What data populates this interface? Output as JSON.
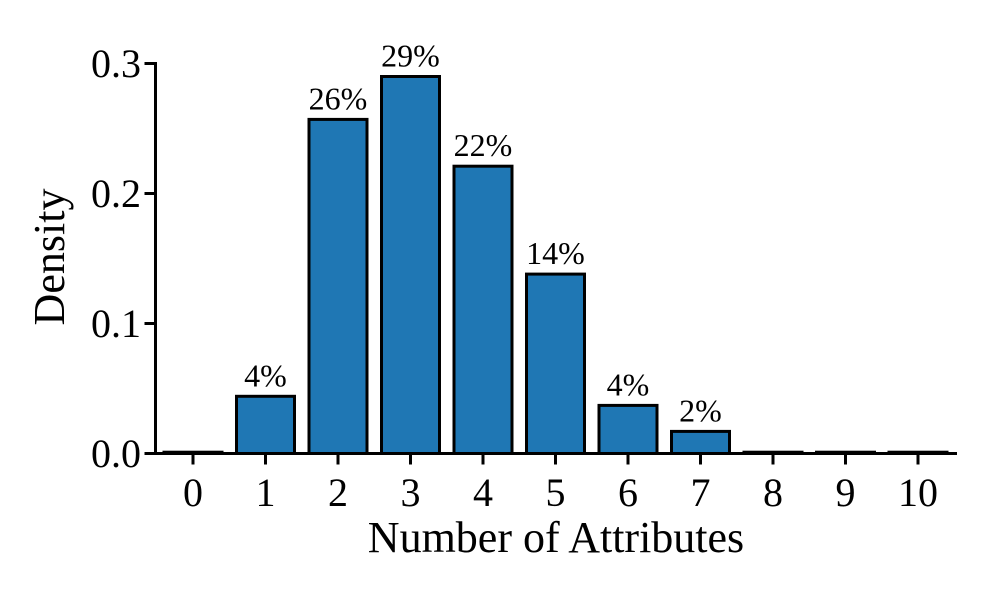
{
  "chart_data": {
    "type": "bar",
    "title": "",
    "xlabel": "Number of Attributes",
    "ylabel": "Density",
    "xlim": [
      -0.54,
      10.54
    ],
    "ylim": [
      0,
      0.3
    ],
    "x_ticks": [
      "0",
      "1",
      "2",
      "3",
      "4",
      "5",
      "6",
      "7",
      "8",
      "9",
      "10"
    ],
    "y_ticks": [
      "0.0",
      "0.1",
      "0.2",
      "0.3"
    ],
    "y_tick_values": [
      0.0,
      0.1,
      0.2,
      0.3
    ],
    "grid": false,
    "legend": false,
    "bar_width": 0.8,
    "colors": {
      "bar_fill": "#1f77b4",
      "bar_edge": "#000000",
      "axis": "#000000",
      "text": "#000000",
      "background": "#ffffff"
    },
    "bars": [
      {
        "x": 0,
        "value": 0.001,
        "label": ""
      },
      {
        "x": 1,
        "value": 0.044,
        "label": "4%"
      },
      {
        "x": 2,
        "value": 0.257,
        "label": "26%"
      },
      {
        "x": 3,
        "value": 0.29,
        "label": "29%"
      },
      {
        "x": 4,
        "value": 0.221,
        "label": "22%"
      },
      {
        "x": 5,
        "value": 0.138,
        "label": "14%"
      },
      {
        "x": 6,
        "value": 0.037,
        "label": "4%"
      },
      {
        "x": 7,
        "value": 0.017,
        "label": "2%"
      },
      {
        "x": 8,
        "value": 0.001,
        "label": ""
      },
      {
        "x": 9,
        "value": 0.001,
        "label": ""
      },
      {
        "x": 10,
        "value": 0.001,
        "label": ""
      }
    ]
  }
}
